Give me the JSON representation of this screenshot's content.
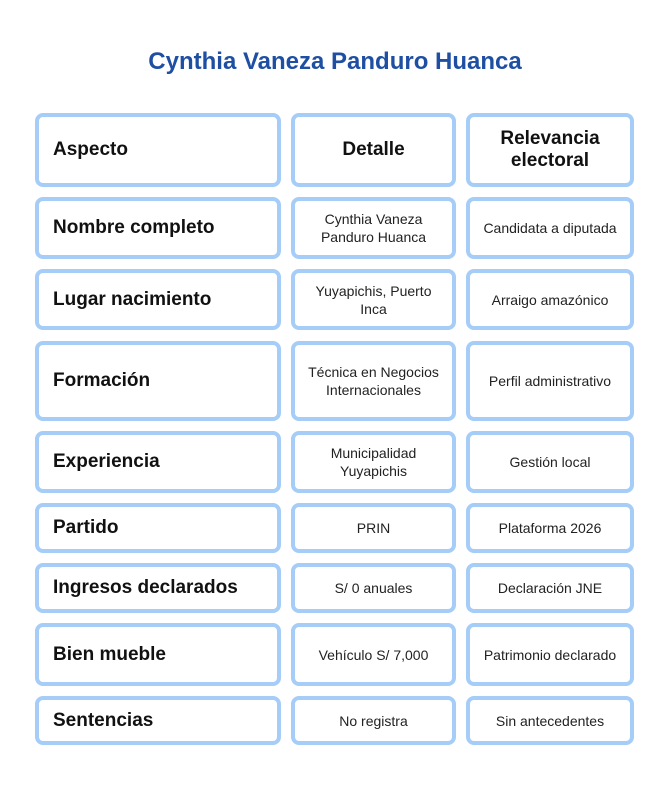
{
  "title": "Cynthia Vaneza Panduro Huanca",
  "headers": [
    "Aspecto",
    "Detalle",
    "Relevancia electoral"
  ],
  "rows": [
    [
      "Nombre completo",
      "Cynthia Vaneza Panduro Huanca",
      "Candidata a diputada"
    ],
    [
      "Lugar nacimiento",
      "Yuyapichis, Puerto Inca",
      "Arraigo amazónico"
    ],
    [
      "Formación",
      "Técnica en Negocios Internacionales",
      "Perfil administrativo"
    ],
    [
      "Experiencia",
      "Municipalidad Yuyapichis",
      "Gestión local"
    ],
    [
      "Partido",
      "PRIN",
      "Plataforma 2026"
    ],
    [
      "Ingresos declarados",
      "S/ 0 anuales",
      "Declaración JNE"
    ],
    [
      "Bien mueble",
      "Vehículo S/ 7,000",
      "Patrimonio declarado"
    ],
    [
      "Sentencias",
      "No registra",
      "Sin antecedentes"
    ]
  ],
  "colors": {
    "title": "#1e4fa3",
    "border": "#a5cdf8"
  }
}
